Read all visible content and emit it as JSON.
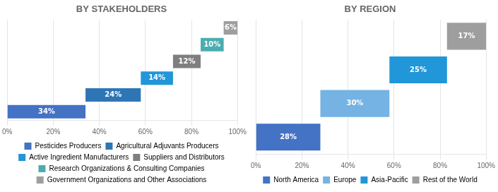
{
  "chart_data": [
    {
      "type": "bar",
      "orientation": "horizontal",
      "title": "BY STAKEHOLDERS",
      "categories": [
        "Pesticides Producers",
        "Agricultural Adjuvants Producers",
        "Active Ingredient Manufacturers",
        "Suppliers and Distributors",
        "Research Organizations & Consulting Companies",
        "Government Organizations and Other Associations"
      ],
      "values": [
        34,
        24,
        14,
        12,
        10,
        6
      ],
      "starts": [
        0,
        34,
        58,
        72,
        84,
        94
      ],
      "value_labels": [
        "34%",
        "24%",
        "14%",
        "12%",
        "10%",
        "6%"
      ],
      "colors": [
        "#4472C4",
        "#2E75B6",
        "#2196D8",
        "#7F7F7F",
        "#4BADB0",
        "#9E9E9E"
      ],
      "data_labels": true,
      "xlim": [
        0,
        100
      ],
      "xticks": [
        {
          "value": 0,
          "label": "0%"
        },
        {
          "value": 20,
          "label": "20%"
        },
        {
          "value": 40,
          "label": "40%"
        },
        {
          "value": 60,
          "label": "60%"
        },
        {
          "value": 80,
          "label": "80%"
        },
        {
          "value": 100,
          "label": "100%"
        }
      ],
      "grid": true,
      "legend": "bottom",
      "tick_labels": "x"
    },
    {
      "type": "bar",
      "orientation": "horizontal",
      "title": "BY REGION",
      "categories": [
        "North America",
        "Europe",
        "Asia-Pacific",
        "Rest of the World"
      ],
      "values": [
        28,
        30,
        25,
        17
      ],
      "starts": [
        0,
        28,
        58,
        83
      ],
      "value_labels": [
        "28%",
        "30%",
        "25%",
        "17%"
      ],
      "colors": [
        "#4472C4",
        "#74B3E3",
        "#2196D8",
        "#9E9E9E"
      ],
      "data_labels": true,
      "xlim": [
        0,
        100
      ],
      "xticks": [
        {
          "value": 0,
          "label": "0%"
        },
        {
          "value": 20,
          "label": "20%"
        },
        {
          "value": 40,
          "label": "40%"
        },
        {
          "value": 60,
          "label": "60%"
        },
        {
          "value": 80,
          "label": "80%"
        },
        {
          "value": 100,
          "label": "100%"
        }
      ],
      "grid": true,
      "legend": "bottom",
      "tick_labels": "x"
    }
  ]
}
